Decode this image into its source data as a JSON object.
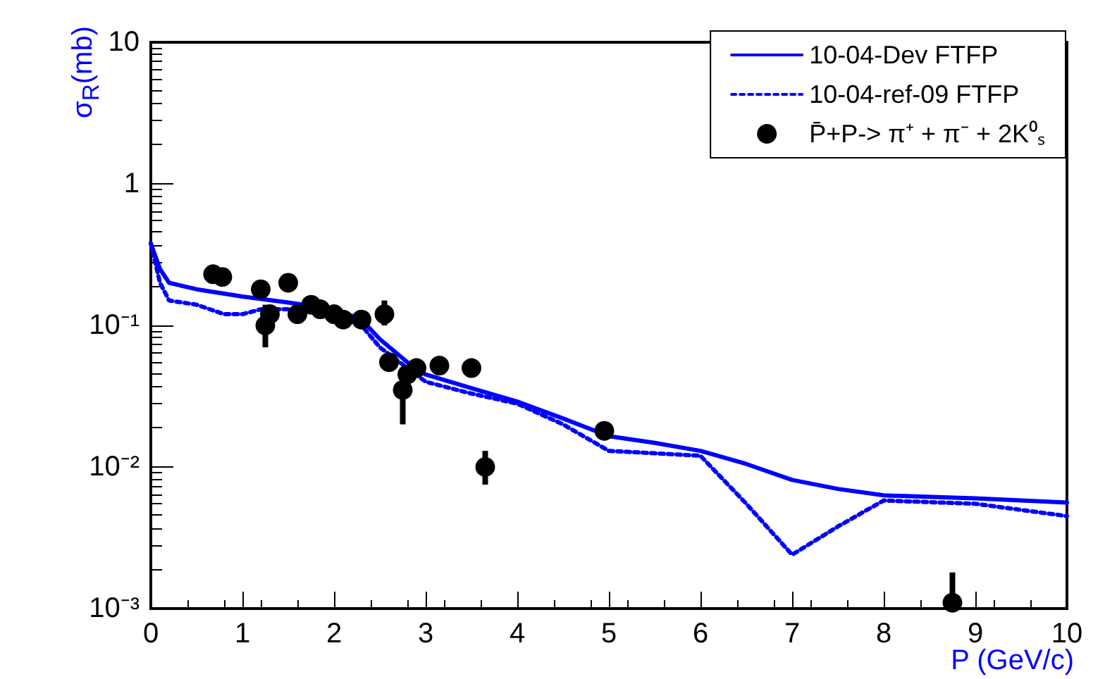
{
  "chart_data": {
    "type": "line",
    "xlabel": "P (GeV/c)",
    "ylabel": "σ$_{R}$(mb)",
    "log": "y",
    "grid": false,
    "legend": "top right",
    "xlim": [
      0,
      10
    ],
    "xticks": [
      0,
      1,
      2,
      3,
      4,
      5,
      6,
      7,
      8,
      9,
      10
    ],
    "ylim": [
      0.001,
      10
    ],
    "yticks": [
      {
        "value": 0.001,
        "label": "10⁻³"
      },
      {
        "value": 0.01,
        "label": "10⁻²"
      },
      {
        "value": 0.1,
        "label": "10⁻¹"
      },
      1,
      10
    ],
    "series": [
      {
        "name": "10-04-Dev FTFP",
        "color": "#0000ff",
        "line_style": "solid",
        "marker": "none",
        "x": [
          0,
          0.1,
          0.2,
          0.5,
          1,
          1.5,
          2,
          2.3,
          2.5,
          2.8,
          3,
          3.5,
          4,
          4.5,
          5,
          5.5,
          6,
          6.5,
          7,
          7.5,
          8,
          9,
          10
        ],
        "values": [
          0.38,
          0.25,
          0.2,
          0.18,
          0.16,
          0.145,
          0.13,
          0.11,
          0.08,
          0.055,
          0.045,
          0.036,
          0.029,
          0.022,
          0.0165,
          0.0148,
          0.013,
          0.0105,
          0.0081,
          0.007,
          0.0063,
          0.006,
          0.0056
        ]
      },
      {
        "name": "10-04-ref-09 FTFP",
        "color": "#0000ff",
        "line_style": "dotted",
        "marker": "none",
        "x": [
          0,
          0.1,
          0.2,
          0.5,
          0.8,
          1,
          1.2,
          1.5,
          2,
          2.3,
          2.5,
          2.8,
          3,
          3.5,
          4,
          4.5,
          5,
          5.5,
          6,
          6.5,
          7,
          7.5,
          8,
          9,
          10
        ],
        "values": [
          0.38,
          0.2,
          0.15,
          0.14,
          0.12,
          0.12,
          0.13,
          0.13,
          0.12,
          0.1,
          0.07,
          0.05,
          0.04,
          0.033,
          0.028,
          0.02,
          0.013,
          0.0125,
          0.012,
          0.0055,
          0.0024,
          0.0038,
          0.0058,
          0.0055,
          0.0045
        ]
      },
      {
        "name": "P̄+P-> π⁺ + π⁻ + 2K⁰ₛ",
        "type": "scatter",
        "color": "#000000",
        "marker": "circle",
        "x": [
          0.68,
          0.78,
          1.2,
          1.25,
          1.3,
          1.5,
          1.6,
          1.75,
          1.85,
          2.0,
          2.1,
          2.3,
          2.55,
          2.6,
          2.75,
          2.8,
          2.9,
          3.15,
          3.5,
          3.65,
          4.95,
          8.75
        ],
        "values": [
          0.23,
          0.22,
          0.18,
          0.1,
          0.12,
          0.2,
          0.12,
          0.14,
          0.13,
          0.12,
          0.11,
          0.11,
          0.12,
          0.055,
          0.035,
          0.045,
          0.05,
          0.052,
          0.05,
          0.01,
          0.018,
          0.0011
        ],
        "errors": [
          null,
          null,
          null,
          [
            0.07,
            0.14
          ],
          null,
          null,
          null,
          null,
          null,
          null,
          null,
          null,
          [
            0.1,
            0.15
          ],
          null,
          [
            0.02,
            0.05
          ],
          null,
          null,
          null,
          null,
          [
            0.0075,
            0.013
          ],
          null,
          [
            0.001,
            0.0018
          ]
        ]
      }
    ]
  }
}
